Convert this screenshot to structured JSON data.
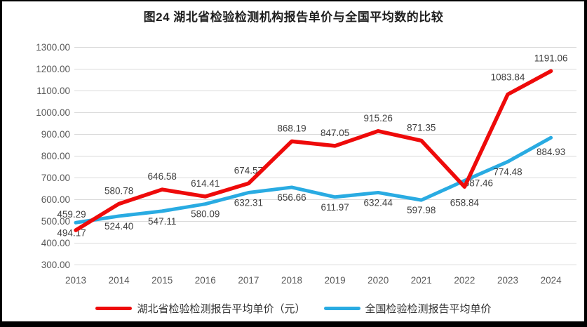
{
  "title": "图24 湖北省检验检测机构报告单价与全国平均数的比较",
  "chart_data": {
    "type": "line",
    "title": "图24 湖北省检验检测机构报告单价与全国平均数的比较",
    "categories": [
      "2013",
      "2014",
      "2015",
      "2016",
      "2017",
      "2018",
      "2019",
      "2020",
      "2021",
      "2022",
      "2023",
      "2024"
    ],
    "series": [
      {
        "name": "湖北省检验检测报告平均单价（元）",
        "color": "#EE0A0A",
        "label_position": "above",
        "values": [
          459.29,
          580.78,
          646.58,
          614.41,
          674.57,
          868.19,
          847.05,
          915.26,
          871.35,
          658.84,
          1083.84,
          1191.06
        ]
      },
      {
        "name": "全国检验检测报告平均单价",
        "color": "#29ABE2",
        "label_position": "below",
        "values": [
          494.17,
          524.4,
          547.11,
          580.09,
          632.31,
          656.66,
          611.97,
          632.44,
          597.98,
          687.46,
          774.48,
          884.93
        ]
      }
    ],
    "ylim": [
      300,
      1300
    ],
    "ytick_step": 100,
    "ytick_format": "0.00",
    "grid": true,
    "legend_position": "bottom",
    "gridline_color": "#DADADA",
    "axis_text_color": "#595959",
    "data_label_color": "#3f3f3f"
  }
}
